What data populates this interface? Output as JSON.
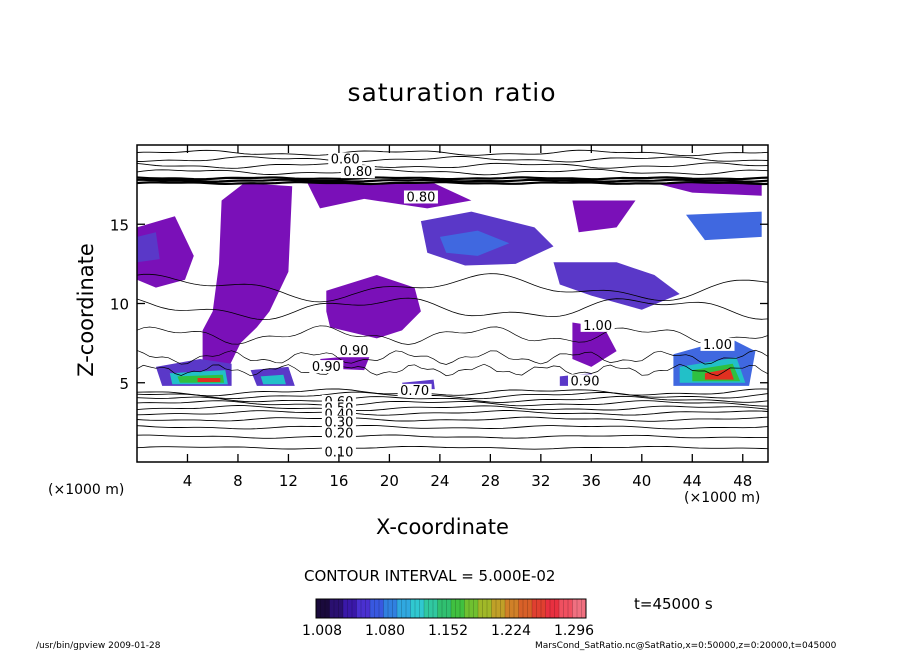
{
  "chart_data": {
    "type": "heatmap",
    "title": "saturation ratio",
    "xlabel": "X-coordinate",
    "ylabel": "Z-coordinate",
    "x_unit_left": "(×1000 m)",
    "x_unit_right": "(×1000 m)",
    "xlim": [
      0,
      50
    ],
    "ylim": [
      0,
      20
    ],
    "x_ticks": [
      4,
      8,
      12,
      16,
      20,
      24,
      28,
      32,
      36,
      40,
      44,
      48
    ],
    "y_ticks": [
      5,
      10,
      15
    ],
    "contour_labels": [
      {
        "text": "0.60",
        "x": 16.5,
        "z": 18.9
      },
      {
        "text": "0.80",
        "x": 17.5,
        "z": 18.1
      },
      {
        "text": "0.80",
        "x": 22.5,
        "z": 16.5
      },
      {
        "text": "1.00",
        "x": 36.5,
        "z": 8.4
      },
      {
        "text": "1.00",
        "x": 46.0,
        "z": 7.2
      },
      {
        "text": "0.90",
        "x": 17.2,
        "z": 6.8
      },
      {
        "text": "0.90",
        "x": 15.0,
        "z": 5.8
      },
      {
        "text": "0.90",
        "x": 35.5,
        "z": 4.9
      },
      {
        "text": "0.70",
        "x": 22.0,
        "z": 4.3
      },
      {
        "text": "0.60",
        "x": 16.0,
        "z": 3.6
      },
      {
        "text": "0.50",
        "x": 16.0,
        "z": 3.2
      },
      {
        "text": "0.40",
        "x": 16.0,
        "z": 2.8
      },
      {
        "text": "0.30",
        "x": 16.0,
        "z": 2.3
      },
      {
        "text": "0.20",
        "x": 16.0,
        "z": 1.6
      },
      {
        "text": "0.10",
        "x": 16.0,
        "z": 0.4
      }
    ],
    "shaded_regions": [
      {
        "color": "#7a10b8",
        "points": [
          [
            6.7,
            16.5
          ],
          [
            8.5,
            17.6
          ],
          [
            12.3,
            17.4
          ],
          [
            12.0,
            12.0
          ],
          [
            10.5,
            9.5
          ],
          [
            9.5,
            8.5
          ],
          [
            8.2,
            7.5
          ],
          [
            6.8,
            5.2
          ],
          [
            5.2,
            5.5
          ],
          [
            5.2,
            8.3
          ],
          [
            6.0,
            9.5
          ],
          [
            6.5,
            12.5
          ]
        ]
      },
      {
        "color": "#7a10b8",
        "points": [
          [
            15.0,
            10.8
          ],
          [
            19.0,
            11.8
          ],
          [
            22.0,
            11.0
          ],
          [
            22.5,
            9.5
          ],
          [
            21.0,
            8.3
          ],
          [
            19.0,
            7.8
          ],
          [
            15.3,
            8.5
          ],
          [
            15.0,
            9.5
          ]
        ]
      },
      {
        "color": "#7a10b8",
        "points": [
          [
            13.5,
            17.6
          ],
          [
            23.5,
            17.6
          ],
          [
            26.5,
            16.5
          ],
          [
            23.0,
            16.0
          ],
          [
            18.0,
            16.6
          ],
          [
            14.5,
            16.0
          ]
        ]
      },
      {
        "color": "#7a10b8",
        "points": [
          [
            34.5,
            16.5
          ],
          [
            39.5,
            16.5
          ],
          [
            38.0,
            14.8
          ],
          [
            35.0,
            14.5
          ]
        ]
      },
      {
        "color": "#7a10b8",
        "points": [
          [
            41.0,
            17.6
          ],
          [
            49.5,
            17.6
          ],
          [
            49.5,
            16.8
          ],
          [
            44.0,
            17.0
          ]
        ]
      },
      {
        "color": "#7a10b8",
        "points": [
          [
            34.5,
            8.8
          ],
          [
            37.0,
            8.5
          ],
          [
            38.0,
            7.0
          ],
          [
            36.0,
            6.0
          ],
          [
            34.5,
            6.5
          ]
        ]
      },
      {
        "color": "#7a10b8",
        "points": [
          [
            0.0,
            14.8
          ],
          [
            3.0,
            15.5
          ],
          [
            4.5,
            13.0
          ],
          [
            3.8,
            11.5
          ],
          [
            1.5,
            11.0
          ],
          [
            0.0,
            11.5
          ]
        ]
      },
      {
        "color": "#5a38c8",
        "points": [
          [
            22.5,
            15.2
          ],
          [
            26.5,
            15.8
          ],
          [
            31.5,
            14.8
          ],
          [
            33.0,
            13.6
          ],
          [
            30.0,
            12.5
          ],
          [
            26.0,
            12.4
          ],
          [
            23.0,
            13.2
          ]
        ]
      },
      {
        "color": "#4068e0",
        "points": [
          [
            24.0,
            14.2
          ],
          [
            27.0,
            14.6
          ],
          [
            29.5,
            13.8
          ],
          [
            27.0,
            13.0
          ],
          [
            24.5,
            13.2
          ]
        ]
      },
      {
        "color": "#5a38c8",
        "points": [
          [
            33.0,
            12.6
          ],
          [
            38.0,
            12.6
          ],
          [
            41.0,
            11.8
          ],
          [
            43.0,
            10.6
          ],
          [
            40.0,
            9.6
          ],
          [
            36.0,
            10.5
          ],
          [
            33.5,
            11.2
          ]
        ]
      },
      {
        "color": "#4068e0",
        "points": [
          [
            43.5,
            15.6
          ],
          [
            49.5,
            15.8
          ],
          [
            49.5,
            14.2
          ],
          [
            45.0,
            14.0
          ]
        ]
      },
      {
        "color": "#5a38c8",
        "points": [
          [
            0.0,
            14.2
          ],
          [
            1.5,
            14.5
          ],
          [
            1.8,
            12.8
          ],
          [
            0.0,
            12.6
          ]
        ]
      },
      {
        "color": "#5a38c8",
        "points": [
          [
            1.5,
            6.0
          ],
          [
            5.0,
            6.5
          ],
          [
            7.5,
            6.2
          ],
          [
            7.5,
            4.8
          ],
          [
            2.0,
            4.8
          ]
        ]
      },
      {
        "color": "#22c0c8",
        "points": [
          [
            2.6,
            5.6
          ],
          [
            7.0,
            5.8
          ],
          [
            7.2,
            4.9
          ],
          [
            2.8,
            4.9
          ]
        ]
      },
      {
        "color": "#2ec040",
        "points": [
          [
            3.2,
            5.4
          ],
          [
            6.8,
            5.5
          ],
          [
            6.9,
            5.0
          ],
          [
            3.4,
            5.0
          ]
        ]
      },
      {
        "color": "#e03020",
        "points": [
          [
            4.8,
            5.3
          ],
          [
            6.6,
            5.3
          ],
          [
            6.6,
            5.05
          ],
          [
            4.8,
            5.05
          ]
        ]
      },
      {
        "color": "#5a38c8",
        "points": [
          [
            9.0,
            5.8
          ],
          [
            12.0,
            6.0
          ],
          [
            12.5,
            4.8
          ],
          [
            9.5,
            4.8
          ]
        ]
      },
      {
        "color": "#22c0c8",
        "points": [
          [
            9.8,
            5.4
          ],
          [
            11.6,
            5.5
          ],
          [
            11.8,
            4.9
          ],
          [
            10.0,
            4.9
          ]
        ]
      },
      {
        "color": "#4068e0",
        "points": [
          [
            42.5,
            6.8
          ],
          [
            47.0,
            7.8
          ],
          [
            49.0,
            7.0
          ],
          [
            48.5,
            4.8
          ],
          [
            42.5,
            4.8
          ]
        ]
      },
      {
        "color": "#22c0c8",
        "points": [
          [
            43.0,
            6.0
          ],
          [
            47.5,
            6.6
          ],
          [
            48.2,
            5.0
          ],
          [
            43.0,
            5.0
          ]
        ]
      },
      {
        "color": "#2ec040",
        "points": [
          [
            44.0,
            5.8
          ],
          [
            47.2,
            6.2
          ],
          [
            47.8,
            5.1
          ],
          [
            44.0,
            5.1
          ]
        ]
      },
      {
        "color": "#e03020",
        "points": [
          [
            45.0,
            5.6
          ],
          [
            47.0,
            5.9
          ],
          [
            47.3,
            5.2
          ],
          [
            45.0,
            5.2
          ]
        ]
      },
      {
        "color": "#5a38c8",
        "points": [
          [
            33.5,
            5.4
          ],
          [
            36.0,
            5.6
          ],
          [
            36.5,
            4.8
          ],
          [
            33.5,
            4.8
          ]
        ]
      },
      {
        "color": "#5a38c8",
        "points": [
          [
            21.0,
            5.0
          ],
          [
            23.5,
            5.2
          ],
          [
            23.6,
            4.6
          ],
          [
            21.2,
            4.6
          ]
        ]
      },
      {
        "color": "#7a10b8",
        "points": [
          [
            14.5,
            6.5
          ],
          [
            18.5,
            6.8
          ],
          [
            18.0,
            5.8
          ],
          [
            15.0,
            5.9
          ]
        ]
      }
    ],
    "colorbar": {
      "tick_labels": [
        "1.008",
        "1.080",
        "1.152",
        "1.224",
        "1.296"
      ],
      "colors": [
        "#1a0a3c",
        "#2a1070",
        "#3a18a8",
        "#4a30d0",
        "#3858e0",
        "#3080e0",
        "#30a8e0",
        "#30c8d0",
        "#30c8a0",
        "#30c070",
        "#40c040",
        "#70c030",
        "#a0b828",
        "#c0a028",
        "#d08028",
        "#d86028",
        "#e04030",
        "#e83040",
        "#f05060",
        "#f07080"
      ],
      "min": 1.008,
      "max": 1.296
    }
  },
  "contour_interval_text": "CONTOUR INTERVAL = 5.000E-02",
  "time_text": "t=45000 s",
  "footer_left": "/usr/bin/gpview  2009-01-28",
  "footer_right": "MarsCond_SatRatio.nc@SatRatio,x=0:50000,z=0:20000,t=045000"
}
